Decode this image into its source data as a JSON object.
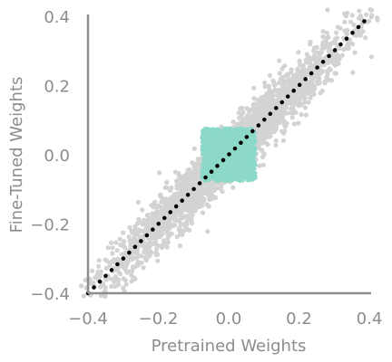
{
  "chart_data": {
    "type": "scatter",
    "title": "",
    "xlabel": "Pretrained Weights",
    "ylabel": "Fine-Tuned Weights",
    "xlim": [
      -0.4,
      0.4
    ],
    "ylim": [
      -0.4,
      0.4
    ],
    "xticks": [
      "−0.4",
      "−0.2",
      "0.0",
      "0.2",
      "0.4"
    ],
    "xtick_values": [
      -0.4,
      -0.2,
      0.0,
      0.2,
      0.4
    ],
    "yticks": [
      "−0.4",
      "−0.2",
      "0.0",
      "0.2",
      "0.4"
    ],
    "ytick_values": [
      -0.4,
      -0.2,
      0.0,
      0.2,
      0.4
    ],
    "grid": false,
    "colors": {
      "cloud": "#d3d3d3",
      "box": "#8cd9c8",
      "diagonal": "#000000",
      "axis": "#8c8c8c"
    },
    "series": [
      {
        "role": "weight-cloud",
        "description_points": "dense cloud of (pretrained, fine-tuned) weight pairs along y = x, spread roughly +/-0.1 across",
        "x_range": [
          -0.4,
          0.4
        ],
        "y_offset_sd": 0.04,
        "color": "#d3d3d3"
      },
      {
        "role": "near-zero-weights",
        "x_range": [
          -0.07,
          0.07
        ],
        "y_range": [
          -0.07,
          0.07
        ],
        "color": "#8cd9c8"
      },
      {
        "role": "identity-line",
        "x": [
          -0.4,
          0.4
        ],
        "y": [
          -0.4,
          0.4
        ],
        "style": "dotted",
        "color": "#000000"
      }
    ]
  }
}
